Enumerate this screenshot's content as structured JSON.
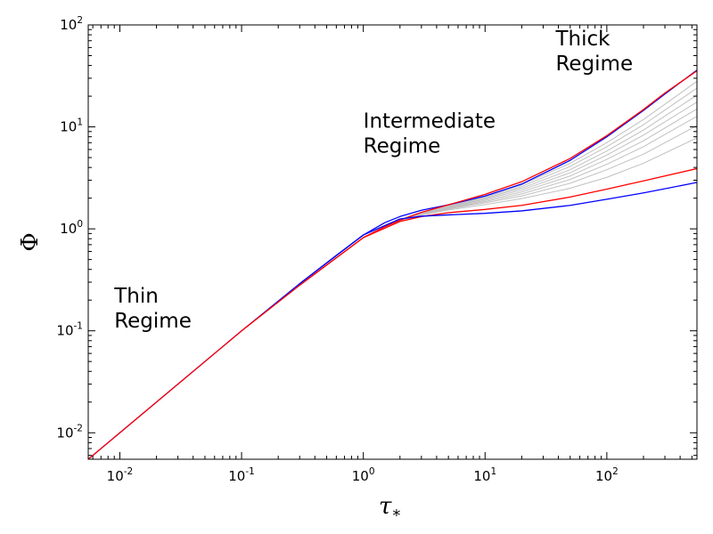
{
  "chart_data": {
    "type": "line",
    "title": "",
    "xlabel": {
      "symbol": "τ",
      "subscript": "*"
    },
    "ylabel": "Φ",
    "xscale": "log",
    "yscale": "log",
    "xlim": [
      0.0055,
      550
    ],
    "ylim": [
      0.0055,
      100
    ],
    "grid": false,
    "x_ticks": [
      {
        "base": "10",
        "exp": "-2",
        "value": 0.01
      },
      {
        "base": "10",
        "exp": "-1",
        "value": 0.1
      },
      {
        "base": "10",
        "exp": "0",
        "value": 1
      },
      {
        "base": "10",
        "exp": "1",
        "value": 10
      },
      {
        "base": "10",
        "exp": "2",
        "value": 100
      }
    ],
    "y_ticks": [
      {
        "base": "10",
        "exp": "-2",
        "value": 0.01
      },
      {
        "base": "10",
        "exp": "-1",
        "value": 0.1
      },
      {
        "base": "10",
        "exp": "0",
        "value": 1
      },
      {
        "base": "10",
        "exp": "1",
        "value": 10
      },
      {
        "base": "10",
        "exp": "2",
        "value": 100
      }
    ],
    "annotations": [
      {
        "lines": [
          "Thin",
          " Regime"
        ],
        "x": 0.009,
        "y": 0.19
      },
      {
        "lines": [
          "Intermediate",
          " Regime"
        ],
        "x": 1.0,
        "y": 9.8
      },
      {
        "lines": [
          "Thick",
          " Regime"
        ],
        "x": 38,
        "y": 63
      }
    ],
    "series": [
      {
        "color": "#0000ff",
        "points": [
          [
            0.0055,
            0.0055
          ],
          [
            0.01,
            0.01
          ],
          [
            0.1,
            0.1
          ],
          [
            0.3,
            0.29
          ],
          [
            0.6,
            0.55
          ],
          [
            1,
            0.87
          ],
          [
            1.5,
            1.15
          ],
          [
            2,
            1.32
          ],
          [
            3,
            1.52
          ],
          [
            5,
            1.72
          ],
          [
            10,
            2.1
          ],
          [
            20,
            2.75
          ],
          [
            50,
            4.7
          ],
          [
            100,
            8.0
          ],
          [
            200,
            14.5
          ],
          [
            300,
            21.0
          ],
          [
            550,
            36.0
          ]
        ]
      },
      {
        "color": "#ff0000",
        "points": [
          [
            0.0055,
            0.0055
          ],
          [
            0.01,
            0.01
          ],
          [
            0.1,
            0.1
          ],
          [
            0.3,
            0.28
          ],
          [
            0.6,
            0.52
          ],
          [
            1,
            0.82
          ],
          [
            1.5,
            1.05
          ],
          [
            2,
            1.22
          ],
          [
            3,
            1.45
          ],
          [
            5,
            1.72
          ],
          [
            10,
            2.18
          ],
          [
            20,
            2.9
          ],
          [
            50,
            4.9
          ],
          [
            100,
            8.2
          ],
          [
            200,
            14.8
          ],
          [
            300,
            21.5
          ],
          [
            550,
            35.5
          ]
        ]
      },
      {
        "color": "#c0c0c0",
        "points": [
          [
            0.3,
            0.28
          ],
          [
            1,
            0.82
          ],
          [
            2,
            1.22
          ],
          [
            3,
            1.44
          ],
          [
            5,
            1.68
          ],
          [
            10,
            2.1
          ],
          [
            20,
            2.7
          ],
          [
            50,
            4.4
          ],
          [
            100,
            7.0
          ],
          [
            200,
            11.8
          ],
          [
            550,
            28.0
          ]
        ]
      },
      {
        "color": "#c0c0c0",
        "points": [
          [
            0.3,
            0.28
          ],
          [
            1,
            0.82
          ],
          [
            2,
            1.22
          ],
          [
            3,
            1.43
          ],
          [
            5,
            1.66
          ],
          [
            10,
            2.05
          ],
          [
            20,
            2.6
          ],
          [
            50,
            4.1
          ],
          [
            100,
            6.4
          ],
          [
            200,
            10.5
          ],
          [
            550,
            24.0
          ]
        ]
      },
      {
        "color": "#c0c0c0",
        "points": [
          [
            0.3,
            0.28
          ],
          [
            1,
            0.82
          ],
          [
            2,
            1.22
          ],
          [
            3,
            1.42
          ],
          [
            5,
            1.64
          ],
          [
            10,
            2.0
          ],
          [
            20,
            2.5
          ],
          [
            50,
            3.8
          ],
          [
            100,
            5.8
          ],
          [
            200,
            9.3
          ],
          [
            550,
            20.5
          ]
        ]
      },
      {
        "color": "#c0c0c0",
        "points": [
          [
            0.3,
            0.28
          ],
          [
            1,
            0.82
          ],
          [
            2,
            1.21
          ],
          [
            3,
            1.41
          ],
          [
            5,
            1.62
          ],
          [
            10,
            1.95
          ],
          [
            20,
            2.4
          ],
          [
            50,
            3.55
          ],
          [
            100,
            5.3
          ],
          [
            200,
            8.3
          ],
          [
            550,
            17.5
          ]
        ]
      },
      {
        "color": "#c0c0c0",
        "points": [
          [
            0.3,
            0.28
          ],
          [
            1,
            0.82
          ],
          [
            2,
            1.21
          ],
          [
            3,
            1.4
          ],
          [
            5,
            1.6
          ],
          [
            10,
            1.9
          ],
          [
            20,
            2.3
          ],
          [
            50,
            3.3
          ],
          [
            100,
            4.8
          ],
          [
            200,
            7.3
          ],
          [
            550,
            15.0
          ]
        ]
      },
      {
        "color": "#c0c0c0",
        "points": [
          [
            0.3,
            0.28
          ],
          [
            1,
            0.82
          ],
          [
            2,
            1.21
          ],
          [
            3,
            1.39
          ],
          [
            5,
            1.58
          ],
          [
            10,
            1.85
          ],
          [
            20,
            2.2
          ],
          [
            50,
            3.05
          ],
          [
            100,
            4.3
          ],
          [
            200,
            6.4
          ],
          [
            550,
            12.7
          ]
        ]
      },
      {
        "color": "#c0c0c0",
        "points": [
          [
            0.3,
            0.28
          ],
          [
            1,
            0.82
          ],
          [
            2,
            1.2
          ],
          [
            3,
            1.38
          ],
          [
            5,
            1.56
          ],
          [
            10,
            1.8
          ],
          [
            20,
            2.1
          ],
          [
            50,
            2.8
          ],
          [
            100,
            3.8
          ],
          [
            200,
            5.4
          ],
          [
            550,
            10.3
          ]
        ]
      },
      {
        "color": "#c0c0c0",
        "points": [
          [
            0.3,
            0.28
          ],
          [
            1,
            0.82
          ],
          [
            2,
            1.2
          ],
          [
            3,
            1.37
          ],
          [
            5,
            1.53
          ],
          [
            10,
            1.73
          ],
          [
            20,
            1.98
          ],
          [
            50,
            2.5
          ],
          [
            100,
            3.2
          ],
          [
            200,
            4.4
          ],
          [
            550,
            7.8
          ]
        ]
      },
      {
        "color": "#ff0000",
        "points": [
          [
            0.3,
            0.28
          ],
          [
            1,
            0.82
          ],
          [
            2,
            1.18
          ],
          [
            3,
            1.32
          ],
          [
            5,
            1.44
          ],
          [
            10,
            1.55
          ],
          [
            20,
            1.7
          ],
          [
            50,
            2.05
          ],
          [
            100,
            2.45
          ],
          [
            200,
            2.95
          ],
          [
            550,
            3.9
          ]
        ]
      },
      {
        "color": "#0000ff",
        "points": [
          [
            0.3,
            0.29
          ],
          [
            1,
            0.87
          ],
          [
            2,
            1.25
          ],
          [
            3,
            1.33
          ],
          [
            5,
            1.37
          ],
          [
            10,
            1.42
          ],
          [
            20,
            1.5
          ],
          [
            50,
            1.7
          ],
          [
            100,
            1.95
          ],
          [
            200,
            2.25
          ],
          [
            550,
            2.85
          ]
        ]
      }
    ]
  }
}
